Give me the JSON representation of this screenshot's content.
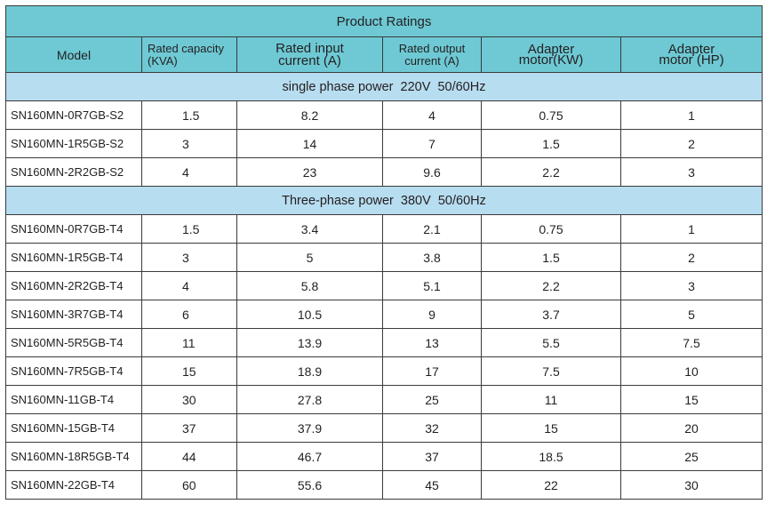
{
  "title": "Product Ratings",
  "headers": {
    "model": "Model",
    "capacity_1": "Rated capacity",
    "capacity_2": "(KVA)",
    "input_1": "Rated input",
    "input_2": "current (A)",
    "output_1": "Rated output",
    "output_2": "current (A)",
    "motor_kw_1": "Adapter",
    "motor_kw_2": "motor(KW)",
    "motor_hp_1": "Adapter",
    "motor_hp_2": "motor (HP)"
  },
  "sections": {
    "single": "single phase power  220V  50/60Hz",
    "three": "Three-phase power  380V  50/60Hz"
  },
  "single_phase": [
    {
      "model": "SN160MN-0R7GB-S2",
      "capacity": "1.5",
      "input": "8.2",
      "output": "4",
      "kw": "0.75",
      "hp": "1"
    },
    {
      "model": "SN160MN-1R5GB-S2",
      "capacity": "3",
      "input": "14",
      "output": "7",
      "kw": "1.5",
      "hp": "2"
    },
    {
      "model": "SN160MN-2R2GB-S2",
      "capacity": "4",
      "input": "23",
      "output": "9.6",
      "kw": "2.2",
      "hp": "3"
    }
  ],
  "three_phase": [
    {
      "model": "SN160MN-0R7GB-T4",
      "capacity": "1.5",
      "input": "3.4",
      "output": "2.1",
      "kw": "0.75",
      "hp": "1"
    },
    {
      "model": "SN160MN-1R5GB-T4",
      "capacity": "3",
      "input": "5",
      "output": "3.8",
      "kw": "1.5",
      "hp": "2"
    },
    {
      "model": "SN160MN-2R2GB-T4",
      "capacity": "4",
      "input": "5.8",
      "output": "5.1",
      "kw": "2.2",
      "hp": "3"
    },
    {
      "model": "SN160MN-3R7GB-T4",
      "capacity": "6",
      "input": "10.5",
      "output": "9",
      "kw": "3.7",
      "hp": "5"
    },
    {
      "model": "SN160MN-5R5GB-T4",
      "capacity": "11",
      "input": "13.9",
      "output": "13",
      "kw": "5.5",
      "hp": "7.5"
    },
    {
      "model": "SN160MN-7R5GB-T4",
      "capacity": "15",
      "input": "18.9",
      "output": "17",
      "kw": "7.5",
      "hp": "10"
    },
    {
      "model": "SN160MN-11GB-T4",
      "capacity": "30",
      "input": "27.8",
      "output": "25",
      "kw": "11",
      "hp": "15"
    },
    {
      "model": "SN160MN-15GB-T4",
      "capacity": "37",
      "input": "37.9",
      "output": "32",
      "kw": "15",
      "hp": "20"
    },
    {
      "model": "SN160MN-18R5GB-T4",
      "capacity": "44",
      "input": "46.7",
      "output": "37",
      "kw": "18.5",
      "hp": "25"
    },
    {
      "model": "SN160MN-22GB-T4",
      "capacity": "60",
      "input": "55.6",
      "output": "45",
      "kw": "22",
      "hp": "30"
    }
  ]
}
